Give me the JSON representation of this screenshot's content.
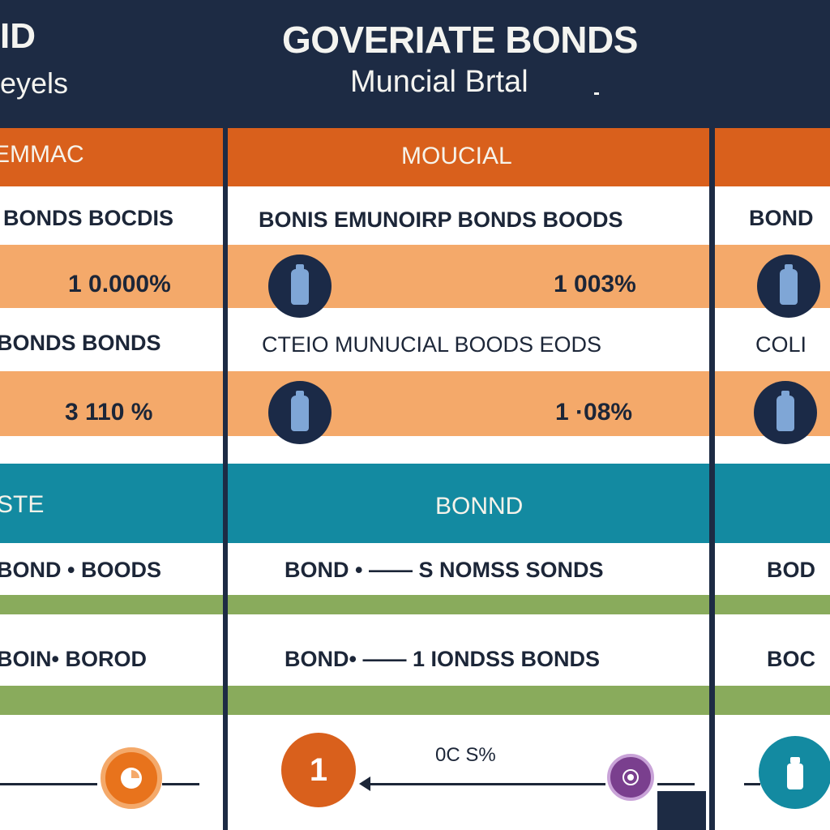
{
  "header": {
    "title": "GOVERIATE BONDS",
    "subtitle": "Muncial Brtal",
    "left_title": "ID",
    "left_subtitle": "eyels"
  },
  "left_column": {
    "header": "EMMAC",
    "row1": "BONDS BOCDIS",
    "value1": "1 0.000%",
    "row2": "BONDS BONDS",
    "value2": "3 110 %",
    "section": "STE",
    "row3": "BOND •   BOODS",
    "row4": "BOIN•   BOROD"
  },
  "middle_column": {
    "header": "MOUCIAL",
    "row1": "BONIS EMUNOIRP BONDS BOODS",
    "value1": "1 003%",
    "row2": "CTEIO  MUNUCIAL BOODS EODS",
    "value2": "1 ·08%",
    "section": "BONND",
    "row3": "BOND •   ——   S NOMSS SONDS",
    "row4": "BOND•   ——   1 IONDSS BONDS",
    "footer_value": "0C S%",
    "badge_number": "1"
  },
  "right_column": {
    "row1": "BOND",
    "row2": "COLI",
    "row3": "BOD",
    "row4": "BOC"
  },
  "icons": [
    "bottle-icon",
    "arrow-icon",
    "badge-icon",
    "tag-icon"
  ],
  "colors": {
    "navy": "#1d2b44",
    "orange": "#d9601c",
    "peach": "#f4a96a",
    "teal": "#138aa1",
    "green": "#89ab5c"
  }
}
